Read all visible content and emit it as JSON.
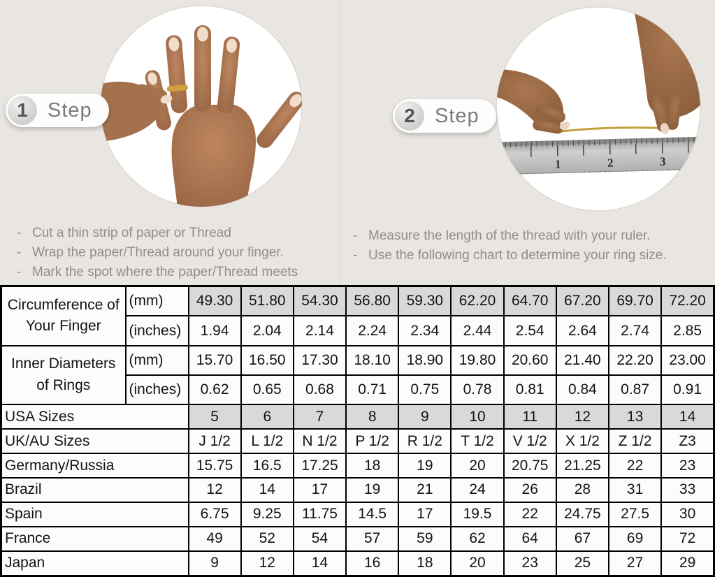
{
  "steps": [
    {
      "number": "1",
      "label": "Step",
      "bullets": [
        "Cut a thin strip of paper or Thread",
        "Wrap the paper/Thread around your finger.",
        "Mark the spot where the paper/Thread meets"
      ]
    },
    {
      "number": "2",
      "label": "Step",
      "bullets": [
        "Measure the length of the thread with your ruler.",
        "Use the following chart to determine your ring size."
      ]
    }
  ],
  "illustrations": {
    "step1": "hand-with-ring-being-measured-photo",
    "step2": "hands-measuring-thread-on-ruler-photo"
  },
  "size_chart": {
    "highlight_color": "#d9d9d9",
    "rows": [
      {
        "label": "Circumference of Your Finger",
        "label_rowspan": 2,
        "label_center": true,
        "unit": "(mm)",
        "highlight": true,
        "values": [
          "49.30",
          "51.80",
          "54.30",
          "56.80",
          "59.30",
          "62.20",
          "64.70",
          "67.20",
          "69.70",
          "72.20"
        ]
      },
      {
        "thin_top": true,
        "unit": "(inches)",
        "values": [
          "1.94",
          "2.04",
          "2.14",
          "2.24",
          "2.34",
          "2.44",
          "2.54",
          "2.64",
          "2.74",
          "2.85"
        ]
      },
      {
        "label": "Inner Diameters of Rings",
        "label_rowspan": 2,
        "label_center": true,
        "unit": "(mm)",
        "values": [
          "15.70",
          "16.50",
          "17.30",
          "18.10",
          "18.90",
          "19.80",
          "20.60",
          "21.40",
          "22.20",
          "23.00"
        ]
      },
      {
        "thin_top": true,
        "unit": "(inches)",
        "values": [
          "0.62",
          "0.65",
          "0.68",
          "0.71",
          "0.75",
          "0.78",
          "0.81",
          "0.84",
          "0.87",
          "0.91"
        ]
      },
      {
        "label": "USA Sizes",
        "label_colspan": 2,
        "highlight": true,
        "values": [
          "5",
          "6",
          "7",
          "8",
          "9",
          "10",
          "11",
          "12",
          "13",
          "14"
        ]
      },
      {
        "label": "UK/AU Sizes",
        "label_colspan": 2,
        "values": [
          "J 1/2",
          "L 1/2",
          "N 1/2",
          "P 1/2",
          "R 1/2",
          "T 1/2",
          "V 1/2",
          "X 1/2",
          "Z 1/2",
          "Z3"
        ]
      },
      {
        "label": "Germany/Russia",
        "label_colspan": 2,
        "values": [
          "15.75",
          "16.5",
          "17.25",
          "18",
          "19",
          "20",
          "20.75",
          "21.25",
          "22",
          "23"
        ]
      },
      {
        "label": "Brazil",
        "label_colspan": 2,
        "values": [
          "12",
          "14",
          "17",
          "19",
          "21",
          "24",
          "26",
          "28",
          "31",
          "33"
        ]
      },
      {
        "label": "Spain",
        "label_colspan": 2,
        "values": [
          "6.75",
          "9.25",
          "11.75",
          "14.5",
          "17",
          "19.5",
          "22",
          "24.75",
          "27.5",
          "30"
        ]
      },
      {
        "label": "France",
        "label_colspan": 2,
        "values": [
          "49",
          "52",
          "54",
          "57",
          "59",
          "62",
          "64",
          "67",
          "69",
          "72"
        ]
      },
      {
        "label": "Japan",
        "label_colspan": 2,
        "values": [
          "9",
          "12",
          "14",
          "16",
          "18",
          "20",
          "23",
          "25",
          "27",
          "29"
        ]
      }
    ]
  },
  "colors": {
    "background": "#e9e6e1",
    "table_highlight": "#d9d9d9",
    "gold_thread": "#c79c3e"
  }
}
